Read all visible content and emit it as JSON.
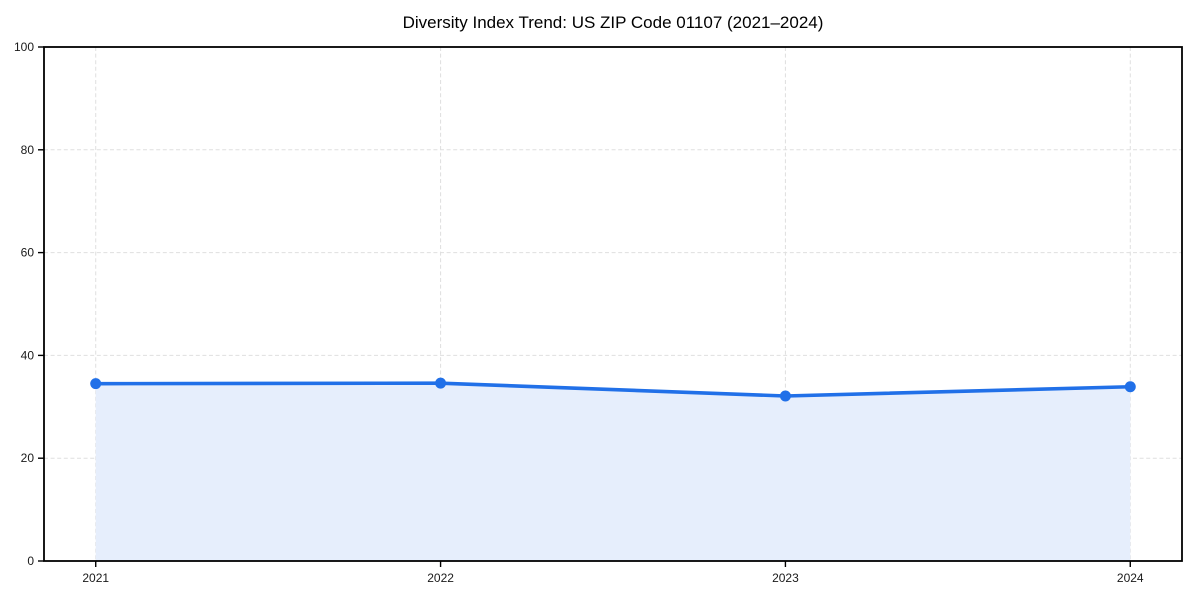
{
  "figure": {
    "background": "#ffffff"
  },
  "chart_data": {
    "type": "area",
    "title": "Diversity Index Trend: US ZIP Code 01107 (2021–2024)",
    "x": [
      2021,
      2022,
      2023,
      2024
    ],
    "xticks": [
      "2021",
      "2022",
      "2023",
      "2024"
    ],
    "yticks": [
      0,
      20,
      40,
      60,
      80,
      100
    ],
    "ylim": [
      0,
      100
    ],
    "x_margin_fraction": 0.05,
    "series": [
      {
        "name": "Diversity Index",
        "values": [
          34.5,
          34.6,
          32.1,
          33.9
        ]
      }
    ],
    "xlabel": "",
    "ylabel": "",
    "grid": "dashed-both-axes",
    "legend": "none",
    "marker": "circle",
    "colors": {
      "line": "#2170e8",
      "marker": "#2170e8",
      "area_fill": "#e6eefc",
      "gridline": "#dfdfdf",
      "axis_spine": "#000000",
      "tick_label": "#1a1a1a",
      "title": "#000000",
      "background": "#ffffff"
    }
  }
}
